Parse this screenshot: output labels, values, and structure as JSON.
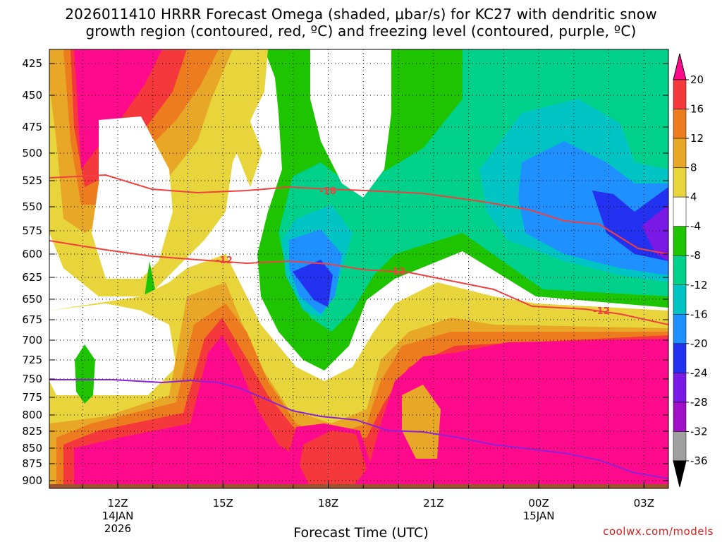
{
  "chart_data": {
    "type": "heatmap",
    "title_line1": "2026011410 HRRR Forecast Omega (shaded, μbar/s) for KC27 with dendritic snow",
    "title_line2": "growth region (contoured, red, ºC) and freezing level (contoured, purple, ºC)",
    "xlabel": "Forecast Time (UTC)",
    "x_ticks": [
      {
        "label": "12Z",
        "sub": [
          "14JAN",
          "2026"
        ],
        "hour": 12
      },
      {
        "label": "15Z",
        "sub": [],
        "hour": 15
      },
      {
        "label": "18Z",
        "sub": [],
        "hour": 18
      },
      {
        "label": "21Z",
        "sub": [],
        "hour": 21
      },
      {
        "label": "00Z",
        "sub": [
          "15JAN"
        ],
        "hour": 24
      },
      {
        "label": "03Z",
        "sub": [],
        "hour": 27
      }
    ],
    "xlim": [
      10,
      28
    ],
    "y_ticks": [
      "425",
      "450",
      "475",
      "500",
      "525",
      "550",
      "575",
      "600",
      "625",
      "650",
      "675",
      "700",
      "725",
      "750",
      "775",
      "800",
      "825",
      "850",
      "875",
      "900"
    ],
    "colorbar": {
      "labels": [
        "20",
        "16",
        "12",
        "8",
        "4",
        "-4",
        "-8",
        "-12",
        "-16",
        "-20",
        "-24",
        "-28",
        "-32",
        "-36"
      ],
      "colors": [
        "#ff0a8c",
        "#f5383c",
        "#ed7c1e",
        "#e8a726",
        "#e8d43b",
        "#ffffff",
        "#1fc400",
        "#00d18a",
        "#00c4c4",
        "#1e90ff",
        "#2332f0",
        "#7a19e6",
        "#a010c8",
        "#a0a0a0",
        "#000000"
      ]
    },
    "contour_labels": [
      "-18",
      "-12",
      "-12",
      "-12"
    ],
    "dgz_line_color": "#f04040",
    "freezing_line_color": "#8e20d8",
    "ground_color": "#a0522d",
    "credit": "coolwx.com/models"
  }
}
